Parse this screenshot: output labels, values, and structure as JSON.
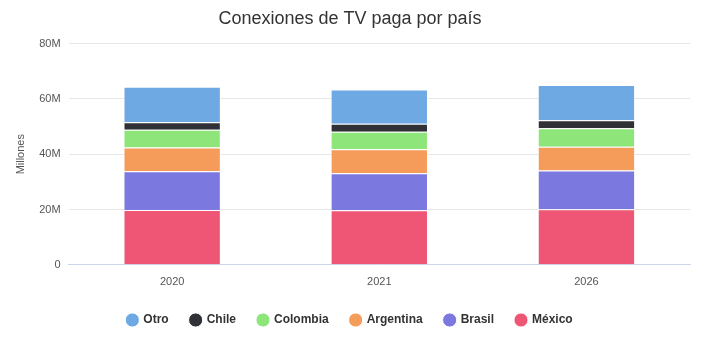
{
  "chart_data": {
    "type": "bar",
    "title": "Conexiones de TV paga por país",
    "ylabel": "Millones",
    "categories": [
      "2020",
      "2021",
      "2026"
    ],
    "series": [
      {
        "name": "México",
        "color": "#ef5675",
        "values": [
          19.8,
          19.7,
          20.1
        ]
      },
      {
        "name": "Brasil",
        "color": "#7b79e0",
        "values": [
          14.0,
          13.4,
          14.0
        ]
      },
      {
        "name": "Argentina",
        "color": "#f59c5a",
        "values": [
          8.6,
          8.7,
          8.6
        ]
      },
      {
        "name": "Colombia",
        "color": "#8ee67a",
        "values": [
          6.4,
          6.3,
          6.7
        ]
      },
      {
        "name": "Chile",
        "color": "#2f3136",
        "values": [
          2.8,
          2.9,
          2.9
        ]
      },
      {
        "name": "Otro",
        "color": "#6ea9e3",
        "values": [
          12.8,
          12.4,
          12.7
        ]
      }
    ],
    "stacked": true,
    "ylim": [
      0,
      80
    ],
    "yticks": [
      0,
      {
        "value": 20,
        "label": "20M"
      },
      {
        "value": 40,
        "label": "40M"
      },
      {
        "value": 60,
        "label": "60M"
      },
      {
        "value": 80,
        "label": "80M"
      }
    ],
    "grid": true,
    "legend": "bottom"
  }
}
